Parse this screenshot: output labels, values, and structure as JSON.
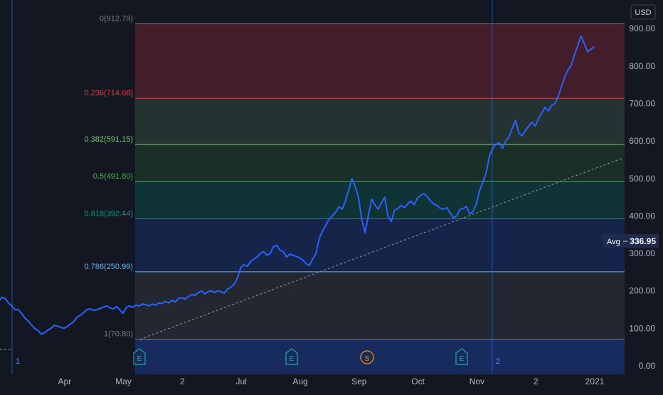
{
  "colors": {
    "background": "#131722",
    "price_line": "#2962ff",
    "vline": "#2962ff",
    "axis_text": "#b2b5be",
    "avg_badge_bg": "#1e2b4f"
  },
  "header": {
    "currency": "USD"
  },
  "markers": [
    {
      "label": "E",
      "kind": "earnings",
      "color": "#26a69a"
    },
    {
      "label": "E",
      "kind": "earnings",
      "color": "#26a69a"
    },
    {
      "label": "S",
      "kind": "split",
      "color": "#ff9800"
    },
    {
      "label": "E",
      "kind": "earnings",
      "color": "#26a69a"
    }
  ],
  "vline_labels": [
    "1",
    "2"
  ],
  "avg": {
    "label": "Avg",
    "value": "336.95"
  },
  "chart_data": {
    "type": "line",
    "title": "",
    "ylim": [
      0,
      950
    ],
    "y_ticks": [
      "0.00",
      "100.00",
      "200.00",
      "300.00",
      "400.00",
      "500.00",
      "600.00",
      "700.00",
      "800.00",
      "900.00"
    ],
    "y_tick_values": [
      0,
      100,
      200,
      300,
      400,
      500,
      600,
      700,
      800,
      900
    ],
    "x_ticks": [
      "Apr",
      "May",
      "2",
      "Jul",
      "Aug",
      "Sep",
      "Oct",
      "Nov",
      "2",
      "2021"
    ],
    "x_tick_index": [
      19,
      37,
      55,
      73,
      91,
      109,
      127,
      145,
      163,
      181
    ],
    "series": [
      {
        "values": [
          165,
          172,
          183,
          180,
          168,
          160,
          150,
          150,
          140,
          128,
          120,
          110,
          100,
          95,
          85,
          88,
          95,
          100,
          108,
          106,
          103,
          100,
          105,
          112,
          118,
          130,
          135,
          142,
          150,
          152,
          148,
          150,
          153,
          157,
          160,
          155,
          152,
          158,
          150,
          140,
          155,
          160,
          156,
          162,
          160,
          165,
          163,
          160,
          165,
          162,
          168,
          166,
          172,
          168,
          175,
          170,
          180,
          182,
          178,
          185,
          190,
          188,
          195,
          200,
          192,
          198,
          200,
          196,
          200,
          198,
          194,
          205,
          210,
          218,
          235,
          262,
          270,
          266,
          278,
          285,
          290,
          300,
          305,
          295,
          300,
          318,
          322,
          308,
          305,
          290,
          298,
          295,
          292,
          288,
          282,
          272,
          268,
          285,
          300,
          340,
          360,
          375,
          392,
          400,
          410,
          425,
          418,
          440,
          470,
          500,
          478,
          450,
          390,
          355,
          402,
          445,
          430,
          418,
          435,
          450,
          400,
          385,
          415,
          420,
          428,
          422,
          432,
          440,
          430,
          448,
          455,
          460,
          452,
          440,
          432,
          428,
          420,
          418,
          422,
          408,
          395,
          400,
          418,
          420,
          425,
          405,
          412,
          432,
          468,
          490,
          515,
          560,
          580,
          592,
          595,
          580,
          600,
          612,
          635,
          655,
          620,
          615,
          628,
          640,
          650,
          640,
          660,
          675,
          690,
          680,
          695,
          700,
          718,
          745,
          770,
          790,
          802,
          830,
          855,
          880,
          860,
          838,
          845,
          852
        ]
      }
    ],
    "fib_levels": [
      {
        "ratio": "0",
        "value": 912.79,
        "label": "0(912.79)",
        "color": "#787b86",
        "band": "rgba(242,54,69,0.22)"
      },
      {
        "ratio": "0.236",
        "value": 714.08,
        "label": "0.236(714.08)",
        "color": "#f23645",
        "band": "rgba(129,199,132,0.16)"
      },
      {
        "ratio": "0.382",
        "value": 591.15,
        "label": "0.382(591.15)",
        "color": "#81c784",
        "band": "rgba(76,175,80,0.16)"
      },
      {
        "ratio": "0.5",
        "value": 491.8,
        "label": "0.5(491.80)",
        "color": "#4caf50",
        "band": "rgba(8,153,129,0.22)"
      },
      {
        "ratio": "0.618",
        "value": 392.44,
        "label": "0.618(392.44)",
        "color": "#089981",
        "band": "rgba(41,98,255,0.18)"
      },
      {
        "ratio": "0.786",
        "value": 250.99,
        "label": "0.786(250.99)",
        "color": "#64b5f6",
        "band": "rgba(120,123,134,0.16)"
      },
      {
        "ratio": "1",
        "value": 70.8,
        "label": "1(70.80)",
        "color": "#787b86",
        "band": "rgba(41,98,255,0.28)"
      }
    ],
    "trend_line": {
      "from": 70.8,
      "to": 555
    }
  }
}
